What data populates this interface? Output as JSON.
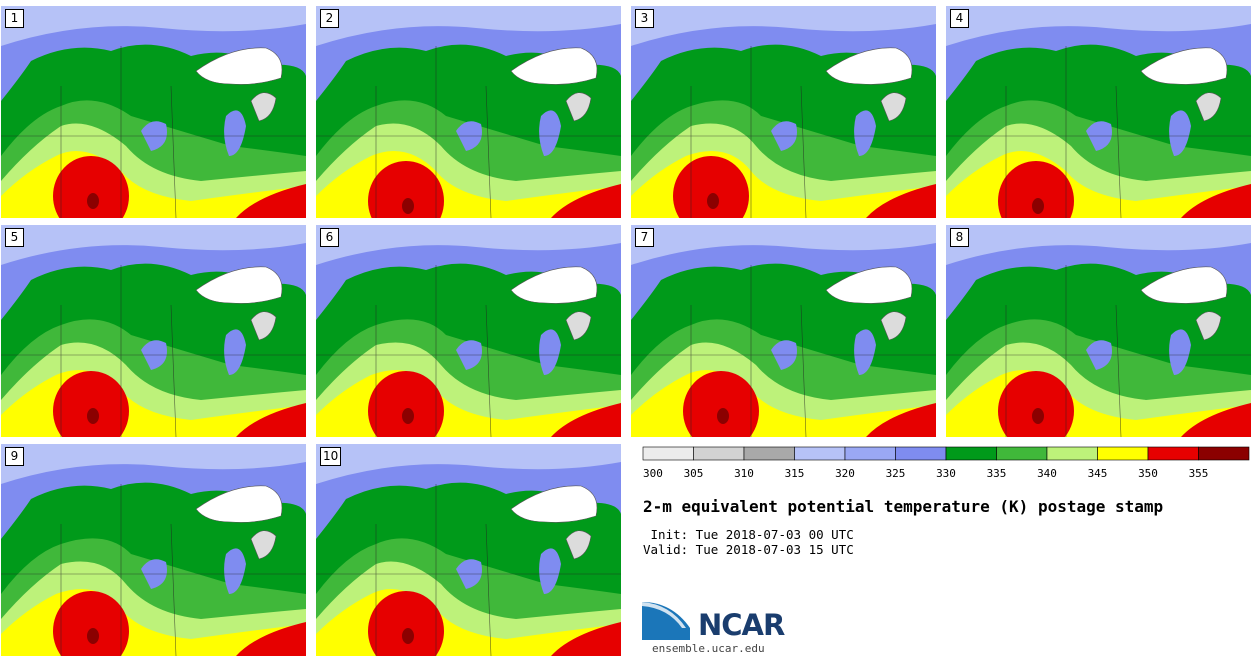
{
  "title": "2-m equivalent potential temperature (K) postage stamp",
  "init": " Init: Tue 2018-07-03 00 UTC",
  "valid": "Valid: Tue 2018-07-03 15 UTC",
  "logo_text": "NCAR",
  "logo_url": "ensemble.ucar.edu",
  "colorbar": {
    "ticks": [
      "300",
      "305",
      "310",
      "315",
      "320",
      "325",
      "330",
      "335",
      "340",
      "345",
      "350",
      "355"
    ],
    "colors": [
      "#ececec",
      "#d2d2d2",
      "#a9a9a9",
      "#b6c2f7",
      "#9aa8f4",
      "#7f8cf0",
      "#009a1a",
      "#40b83a",
      "#bdf27a",
      "#ffff00",
      "#e60000",
      "#8b0000"
    ]
  },
  "panels": [
    {
      "label": "1"
    },
    {
      "label": "2"
    },
    {
      "label": "3"
    },
    {
      "label": "4"
    },
    {
      "label": "5"
    },
    {
      "label": "6"
    },
    {
      "label": "7"
    },
    {
      "label": "8"
    },
    {
      "label": "9"
    },
    {
      "label": "10"
    }
  ]
}
